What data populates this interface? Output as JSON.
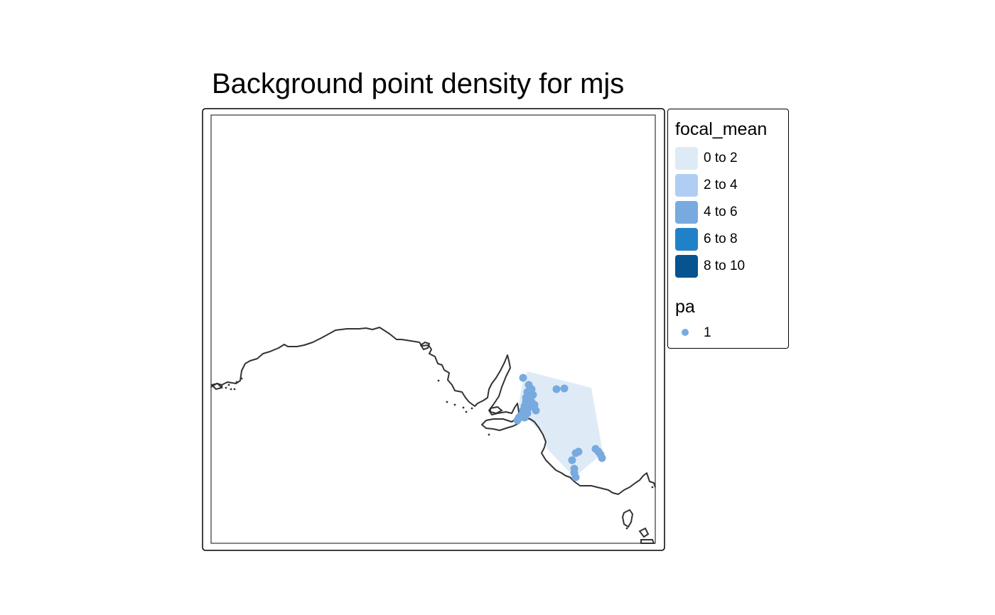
{
  "title": "Background point density for mjs",
  "legend": {
    "focal_mean": {
      "title": "focal_mean",
      "classes": [
        {
          "label": "0 to 2",
          "color": "#deebf7"
        },
        {
          "label": "2 to 4",
          "color": "#b0cef4"
        },
        {
          "label": "4 to 6",
          "color": "#78aadf"
        },
        {
          "label": "6 to 8",
          "color": "#2181c8"
        },
        {
          "label": "8 to 10",
          "color": "#06538f"
        }
      ]
    },
    "pa": {
      "title": "pa",
      "items": [
        {
          "label": "1",
          "color": "#78aadf"
        }
      ]
    }
  },
  "colors": {
    "frame": "#000000",
    "coastline": "#333333",
    "density_fill": "#deebf7",
    "points": "#78aadf"
  }
}
